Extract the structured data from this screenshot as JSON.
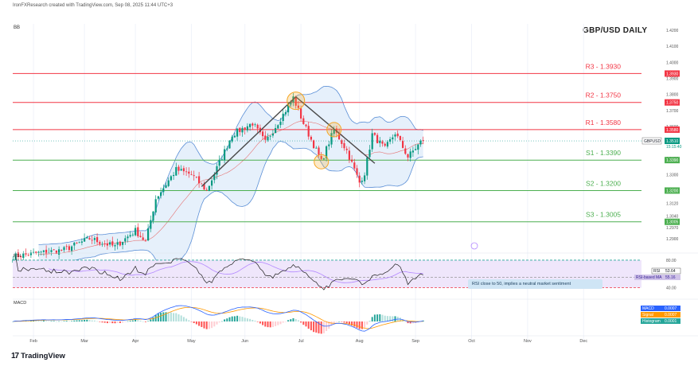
{
  "header": {
    "credit": "IronFXResearch created with TradingView.com, Sep 08, 2025 11:44 UTC+3",
    "indicator_tag": "BB",
    "title": "GBP/USD DAILY"
  },
  "chart_data": {
    "type": "candlestick",
    "title": "GBP/USD DAILY",
    "symbol": "GBP/USD",
    "price_axis": {
      "range": [
        1.282,
        1.424
      ],
      "tick_labels": [
        "1.4200",
        "1.4100",
        "1.4000",
        "1.3900",
        "1.3800",
        "1.3700",
        "1.3600",
        "1.3500",
        "1.3400",
        "1.3300",
        "1.3200",
        "1.3120",
        "1.3040",
        "1.2970",
        "1.2900"
      ],
      "tick_values": [
        1.42,
        1.41,
        1.4,
        1.39,
        1.38,
        1.37,
        1.36,
        1.35,
        1.34,
        1.33,
        1.32,
        1.312,
        1.304,
        1.297,
        1.29
      ]
    },
    "time_axis": {
      "labels": [
        "Feb",
        "Mar",
        "Apr",
        "May",
        "Jun",
        "Jul",
        "Aug",
        "Sep",
        "Oct",
        "Nov",
        "Dec"
      ],
      "label_day_index": [
        8,
        28,
        48,
        70,
        91,
        113,
        136,
        158,
        180,
        202,
        224
      ]
    },
    "key_points": [
      {
        "day": 0,
        "price": 1.279
      },
      {
        "day": 20,
        "price": 1.283
      },
      {
        "day": 30,
        "price": 1.29
      },
      {
        "day": 40,
        "price": 1.285
      },
      {
        "day": 48,
        "price": 1.295
      },
      {
        "day": 52,
        "price": 1.288
      },
      {
        "day": 56,
        "price": 1.315
      },
      {
        "day": 64,
        "price": 1.333
      },
      {
        "day": 70,
        "price": 1.33
      },
      {
        "day": 76,
        "price": 1.32
      },
      {
        "day": 86,
        "price": 1.355
      },
      {
        "day": 94,
        "price": 1.362
      },
      {
        "day": 99,
        "price": 1.35
      },
      {
        "day": 103,
        "price": 1.36
      },
      {
        "day": 107,
        "price": 1.37
      },
      {
        "day": 110,
        "price": 1.378
      },
      {
        "day": 114,
        "price": 1.362
      },
      {
        "day": 119,
        "price": 1.345
      },
      {
        "day": 121,
        "price": 1.338
      },
      {
        "day": 126,
        "price": 1.358
      },
      {
        "day": 131,
        "price": 1.345
      },
      {
        "day": 136,
        "price": 1.325
      },
      {
        "day": 138,
        "price": 1.331
      },
      {
        "day": 141,
        "price": 1.355
      },
      {
        "day": 146,
        "price": 1.346
      },
      {
        "day": 150,
        "price": 1.356
      },
      {
        "day": 155,
        "price": 1.341
      },
      {
        "day": 161,
        "price": 1.352
      }
    ],
    "bollinger_width": 0.011,
    "levels": [
      {
        "name": "R3",
        "label": "R3 - 1.3930",
        "price": 1.393,
        "badge": "1.3930",
        "color": "#f23645"
      },
      {
        "name": "R2",
        "label": "R2 - 1.3750",
        "price": 1.375,
        "badge": "1.3750",
        "color": "#f23645"
      },
      {
        "name": "R1",
        "label": "R1 - 1.3580",
        "price": 1.358,
        "badge": "1.3580",
        "color": "#f23645"
      },
      {
        "name": "S1",
        "label": "S1 - 1.3390",
        "price": 1.339,
        "badge": "1.3390",
        "color": "#4caf50"
      },
      {
        "name": "S2",
        "label": "S2 - 1.3200",
        "price": 1.32,
        "badge": "1.3200",
        "color": "#4caf50"
      },
      {
        "name": "S3",
        "label": "S3 - 1.3005",
        "price": 1.3005,
        "badge": "1.3005",
        "color": "#4caf50"
      }
    ],
    "current_price": {
      "badge_symbol": "GBPUSD",
      "value": "1.3510",
      "price": 1.351,
      "countdown": "15:15:40"
    },
    "trendlines": [
      {
        "from": {
          "day": 74,
          "price": 1.3225
        },
        "to": {
          "day": 111,
          "price": 1.3785
        }
      },
      {
        "from": {
          "day": 111,
          "price": 1.3785
        },
        "to": {
          "day": 142,
          "price": 1.337
        }
      }
    ],
    "highlight_circles": [
      {
        "day": 111,
        "price": 1.376
      },
      {
        "day": 126,
        "price": 1.358
      },
      {
        "day": 121,
        "price": 1.338
      }
    ],
    "rsi": {
      "tag": "RSI",
      "range": [
        28,
        88
      ],
      "overbought": 80,
      "oversold": 40,
      "midline": 55,
      "tick_labels": [
        "80.00",
        "40.00"
      ],
      "rsi_badge": {
        "name": "RSI",
        "value": "53.64"
      },
      "ma_badge": {
        "name": "RSI-based MA",
        "value": "55.16"
      },
      "note": "RSI close to 50, implies a neutral market sentiment"
    },
    "macd": {
      "tag": "MACD",
      "badges": [
        {
          "name": "MACD",
          "value": "0.0007",
          "color": "#2962ff"
        },
        {
          "name": "Signal",
          "value": "0.0007",
          "color": "#ff9800"
        },
        {
          "name": "Histogram",
          "value": "0.0001",
          "color": "#26a69a"
        }
      ]
    }
  },
  "colors": {
    "bull": "#089981",
    "bear": "#f23645",
    "band": "#5b8fd6",
    "band_fill": "#e6f0fb",
    "trend": "#4a4a4a",
    "circle": "#f5a623",
    "rsi_line": "#1e1e1e",
    "rsi_ma": "#b388ff",
    "rsi_fill": "#efe6fb"
  },
  "footer": {
    "brand": "TradingView",
    "brand_mark": "17"
  }
}
